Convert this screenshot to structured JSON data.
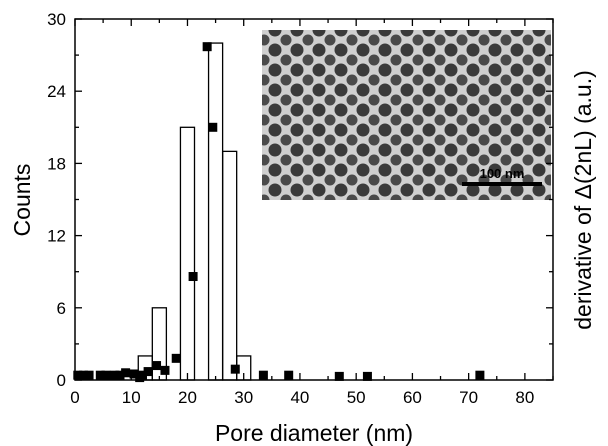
{
  "chart_data": {
    "type": "bar",
    "xlabel": "Pore diameter (nm)",
    "ylabel": "Counts",
    "ylabel_right": "derivative of Δ(2nL) (a.u.)",
    "xlim": [
      0,
      85
    ],
    "ylim": [
      0,
      30
    ],
    "xticks": [
      0,
      10,
      20,
      30,
      40,
      50,
      60,
      70,
      80
    ],
    "yticks": [
      0,
      6,
      12,
      18,
      24,
      30
    ],
    "grid": false,
    "histogram": {
      "bin_width": 2.5,
      "bars": [
        {
          "x": 12.5,
          "value": 2
        },
        {
          "x": 15.0,
          "value": 6
        },
        {
          "x": 20.0,
          "value": 21
        },
        {
          "x": 25.0,
          "value": 28
        },
        {
          "x": 27.5,
          "value": 19
        },
        {
          "x": 30.0,
          "value": 2
        }
      ]
    },
    "scatter": {
      "marker": "square",
      "points": [
        [
          0.5,
          0.4
        ],
        [
          1.5,
          0.4
        ],
        [
          2.5,
          0.4
        ],
        [
          4.5,
          0.4
        ],
        [
          5.5,
          0.4
        ],
        [
          7.0,
          0.4
        ],
        [
          8.0,
          0.4
        ],
        [
          9.0,
          0.6
        ],
        [
          10.5,
          0.5
        ],
        [
          11.5,
          0.2
        ],
        [
          12.0,
          0.4
        ],
        [
          13.0,
          0.7
        ],
        [
          14.5,
          1.2
        ],
        [
          16.0,
          0.8
        ],
        [
          18.0,
          1.8
        ],
        [
          21.0,
          8.6
        ],
        [
          23.5,
          27.7
        ],
        [
          24.5,
          21.0
        ],
        [
          28.5,
          0.9
        ],
        [
          33.5,
          0.4
        ],
        [
          38.0,
          0.4
        ],
        [
          47.0,
          0.3
        ],
        [
          52.0,
          0.3
        ],
        [
          72.0,
          0.4
        ]
      ]
    },
    "inset": {
      "type": "SEM micrograph",
      "scale_bar_label": "100 nm"
    }
  }
}
